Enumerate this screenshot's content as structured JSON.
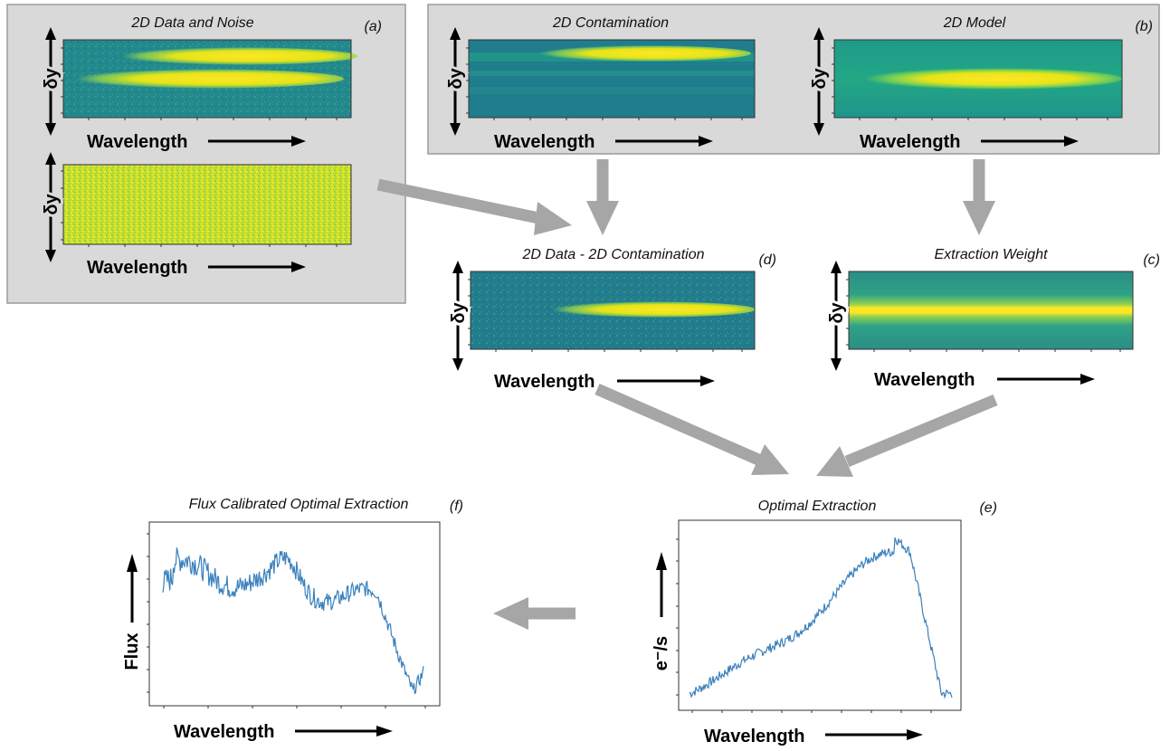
{
  "panels": {
    "a": {
      "tag": "(a)",
      "title": "2D Data and Noise",
      "top_image": {
        "y_label": "δy",
        "x_label": "Wavelength",
        "colormap": "viridis",
        "content": "data"
      },
      "bottom_image": {
        "y_label": "δy",
        "x_label": "Wavelength",
        "colormap": "viridis",
        "content": "noise"
      }
    },
    "b": {
      "tag": "(b)",
      "contamination": {
        "title": "2D Contamination",
        "y_label": "δy",
        "x_label": "Wavelength",
        "content": "contamination"
      },
      "model": {
        "title": "2D Model",
        "y_label": "δy",
        "x_label": "Wavelength",
        "content": "model"
      }
    },
    "d": {
      "tag": "(d)",
      "title": "2D Data - 2D Contamination",
      "y_label": "δy",
      "x_label": "Wavelength",
      "content": "data_minus_contamination"
    },
    "c": {
      "tag": "(c)",
      "title": "Extraction Weight",
      "y_label": "δy",
      "x_label": "Wavelength",
      "content": "weight"
    },
    "e": {
      "tag": "(e)",
      "title": "Optimal Extraction",
      "y_label": "e⁻/s",
      "x_label": "Wavelength",
      "line_color": "#3a80bd"
    },
    "f": {
      "tag": "(f)",
      "title": "Flux Calibrated Optimal Extraction",
      "y_label": "Flux",
      "x_label": "Wavelength",
      "line_color": "#3a80bd"
    }
  },
  "colors": {
    "panel_bg": "#d9d9d9",
    "panel_border": "#9a9a9a",
    "flow_arrow": "#a6a6a6",
    "axis_arrow": "#000000"
  }
}
